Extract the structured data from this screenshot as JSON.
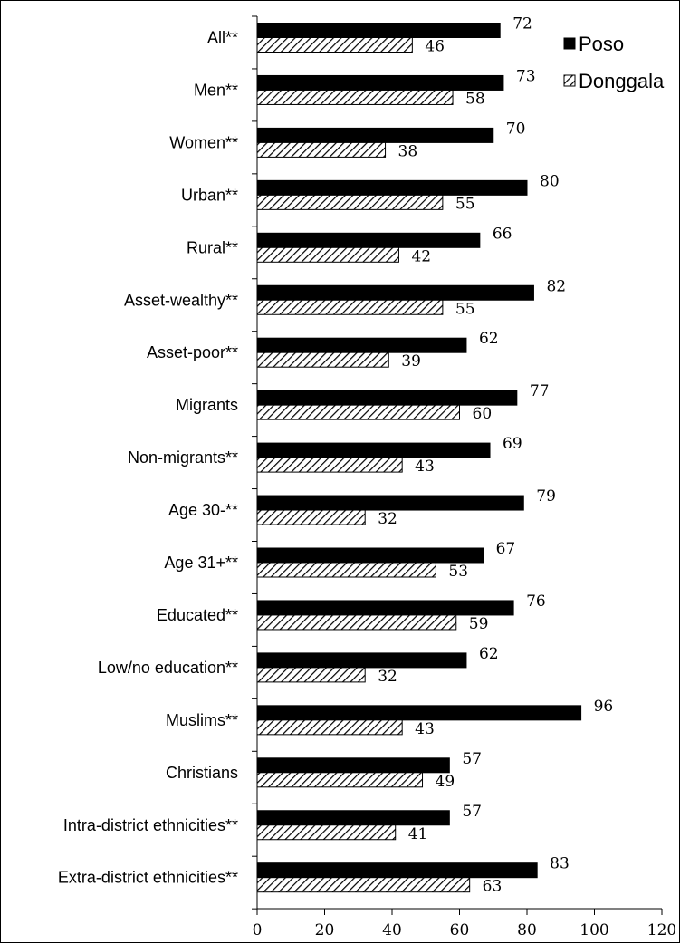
{
  "chart_data": {
    "type": "bar",
    "orientation": "horizontal",
    "categories": [
      "All**",
      "Men**",
      "Women**",
      "Urban**",
      "Rural**",
      "Asset-wealthy**",
      "Asset-poor**",
      "Migrants",
      "Non-migrants**",
      "Age 30-**",
      "Age 31+**",
      "Educated**",
      "Low/no education**",
      "Muslims**",
      "Christians",
      "Intra-district ethnicities**",
      "Extra-district ethnicities**"
    ],
    "series": [
      {
        "name": "Poso",
        "color": "#000000",
        "fill": "solid",
        "values": [
          72,
          73,
          70,
          80,
          66,
          82,
          62,
          77,
          69,
          79,
          67,
          76,
          62,
          96,
          57,
          57,
          83
        ]
      },
      {
        "name": "Donggala",
        "color": "#000000",
        "fill": "diagonal-hatch",
        "values": [
          46,
          58,
          38,
          55,
          42,
          55,
          39,
          60,
          43,
          32,
          53,
          59,
          32,
          43,
          49,
          41,
          63
        ]
      }
    ],
    "xlim": [
      0,
      120
    ],
    "xticks": [
      "0",
      "20",
      "40",
      "60",
      "80",
      "100",
      "120"
    ],
    "grid": false,
    "legend_position": "top-right",
    "data_labels": true,
    "title": "",
    "xlabel": "",
    "ylabel": ""
  }
}
